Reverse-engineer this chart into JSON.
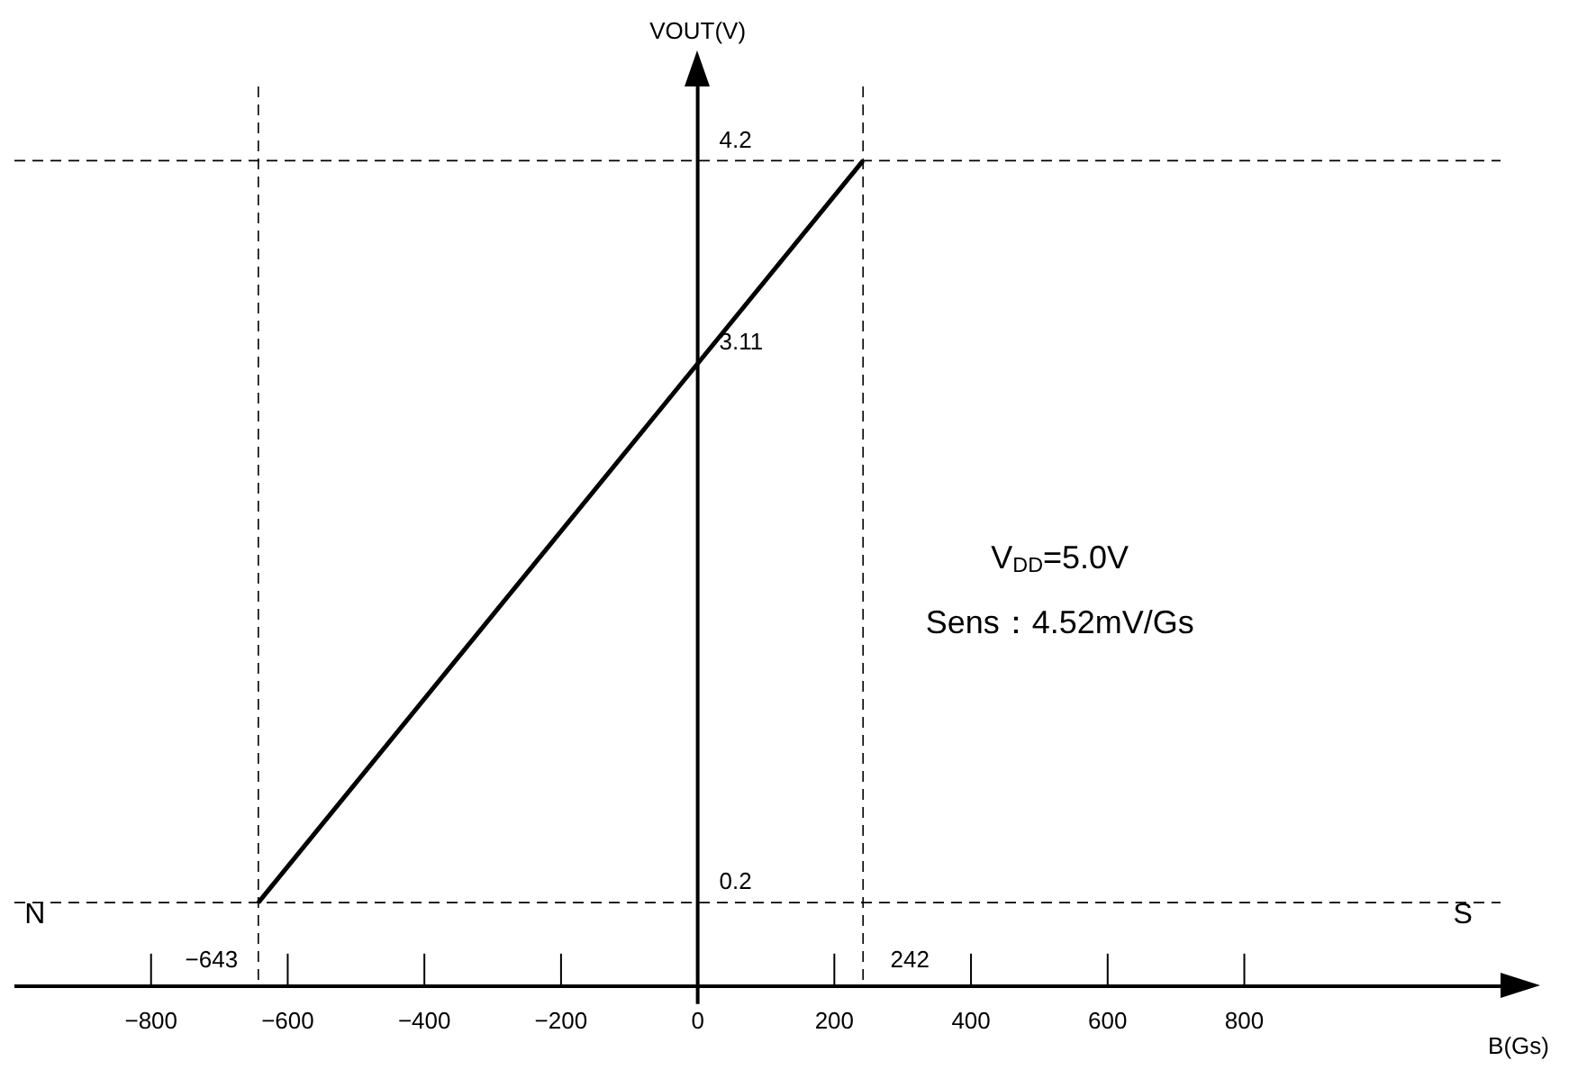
{
  "chart_data": {
    "type": "line",
    "xlabel": "B(Gs)",
    "ylabel": "VOUT(V)",
    "x": [
      -643,
      242
    ],
    "series": [
      {
        "color": "#000000",
        "values": [
          0.2,
          4.2
        ]
      }
    ],
    "xlim": [
      -1000,
      1175
    ],
    "ylim": [
      -0.25,
      4.6
    ],
    "xticks": [
      {
        "value": -800,
        "label": "−800"
      },
      {
        "value": -600,
        "label": "−600"
      },
      {
        "value": -400,
        "label": "−400"
      },
      {
        "value": -200,
        "label": "−200"
      },
      0,
      200,
      400,
      600,
      800
    ],
    "yticks": [
      0.2,
      3.11,
      4.2
    ],
    "ref_lines": [
      {
        "axis": "y",
        "value": 4.2,
        "line_style": "dashed"
      },
      {
        "axis": "y",
        "value": 0.2,
        "line_style": "dashed"
      },
      {
        "axis": "x",
        "value": 242,
        "line_style": "dashed"
      },
      {
        "axis": "x",
        "value": -643,
        "line_style": "dashed"
      }
    ],
    "annotations": [
      "V$_{DD}$=5.0V",
      "Sens：4.52mV/Gs",
      {
        "text": "N",
        "x": -970,
        "y": 0.2
      },
      {
        "text": "S",
        "x": 1120,
        "y": 0.2
      },
      {
        "text": "−643",
        "x": -643,
        "y": -0.25
      },
      {
        "text": "242",
        "x": 242,
        "y": -0.25
      }
    ],
    "marker": "none",
    "line_style": "solid",
    "grid": false,
    "legend": false
  }
}
